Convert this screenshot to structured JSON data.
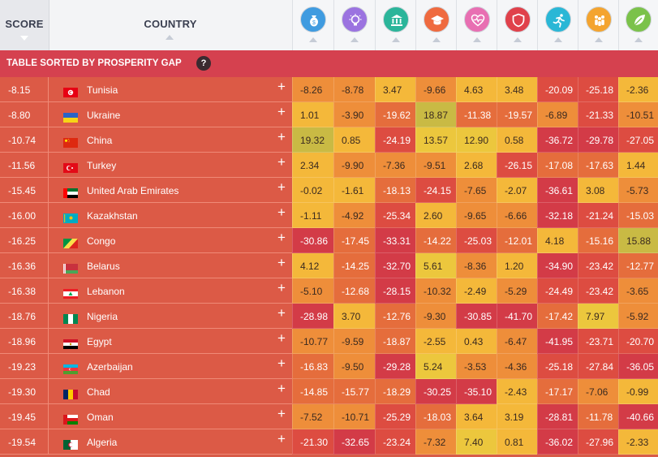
{
  "header": {
    "score_label": "SCORE",
    "country_label": "COUNTRY",
    "pillars": [
      {
        "icon": "money-bag-icon",
        "color": "#3f9be0"
      },
      {
        "icon": "lightbulb-icon",
        "color": "#9b73e0"
      },
      {
        "icon": "government-building-icon",
        "color": "#2bb59a"
      },
      {
        "icon": "graduation-cap-icon",
        "color": "#ef6a3f"
      },
      {
        "icon": "heart-pulse-icon",
        "color": "#e86fb2"
      },
      {
        "icon": "shield-icon",
        "color": "#e0414b"
      },
      {
        "icon": "runner-icon",
        "color": "#2ab7d6"
      },
      {
        "icon": "people-group-icon",
        "color": "#f4a42f"
      },
      {
        "icon": "leaf-icon",
        "color": "#7bc24a"
      }
    ]
  },
  "banner": {
    "text": "TABLE SORTED BY PROSPERITY GAP",
    "help": "?"
  },
  "rows": [
    {
      "score": "-8.15",
      "country": "Tunisia",
      "flag": "tunisia",
      "values": [
        "-8.26",
        "-8.78",
        "3.47",
        "-9.66",
        "4.63",
        "3.48",
        "-20.09",
        "-25.18",
        "-2.36"
      ]
    },
    {
      "score": "-8.80",
      "country": "Ukraine",
      "flag": "ukraine",
      "values": [
        "1.01",
        "-3.90",
        "-19.62",
        "18.87",
        "-11.38",
        "-19.57",
        "-6.89",
        "-21.33",
        "-10.51"
      ]
    },
    {
      "score": "-10.74",
      "country": "China",
      "flag": "china",
      "values": [
        "19.32",
        "0.85",
        "-24.19",
        "13.57",
        "12.90",
        "0.58",
        "-36.72",
        "-29.78",
        "-27.05"
      ]
    },
    {
      "score": "-11.56",
      "country": "Turkey",
      "flag": "turkey",
      "values": [
        "2.34",
        "-9.90",
        "-7.36",
        "-9.51",
        "2.68",
        "-26.15",
        "-17.08",
        "-17.63",
        "1.44"
      ]
    },
    {
      "score": "-15.45",
      "country": "United Arab Emirates",
      "flag": "uae",
      "values": [
        "-0.02",
        "-1.61",
        "-18.13",
        "-24.15",
        "-7.65",
        "-2.07",
        "-36.61",
        "3.08",
        "-5.73"
      ]
    },
    {
      "score": "-16.00",
      "country": "Kazakhstan",
      "flag": "kazakhstan",
      "values": [
        "-1.11",
        "-4.92",
        "-25.34",
        "2.60",
        "-9.65",
        "-6.66",
        "-32.18",
        "-21.24",
        "-15.03"
      ]
    },
    {
      "score": "-16.25",
      "country": "Congo",
      "flag": "congo",
      "values": [
        "-30.86",
        "-17.45",
        "-33.31",
        "-14.22",
        "-25.03",
        "-12.01",
        "4.18",
        "-15.16",
        "15.88"
      ]
    },
    {
      "score": "-16.36",
      "country": "Belarus",
      "flag": "belarus",
      "values": [
        "4.12",
        "-14.25",
        "-32.70",
        "5.61",
        "-8.36",
        "1.20",
        "-34.90",
        "-23.42",
        "-12.77"
      ]
    },
    {
      "score": "-16.38",
      "country": "Lebanon",
      "flag": "lebanon",
      "values": [
        "-5.10",
        "-12.68",
        "-28.15",
        "-10.32",
        "-2.49",
        "-5.29",
        "-24.49",
        "-23.42",
        "-3.65"
      ]
    },
    {
      "score": "-18.76",
      "country": "Nigeria",
      "flag": "nigeria",
      "values": [
        "-28.98",
        "3.70",
        "-12.76",
        "-9.30",
        "-30.85",
        "-41.70",
        "-17.42",
        "7.97",
        "-5.92"
      ]
    },
    {
      "score": "-18.96",
      "country": "Egypt",
      "flag": "egypt",
      "values": [
        "-10.77",
        "-9.59",
        "-18.87",
        "-2.55",
        "0.43",
        "-6.47",
        "-41.95",
        "-23.71",
        "-20.70"
      ]
    },
    {
      "score": "-19.23",
      "country": "Azerbaijan",
      "flag": "azerbaijan",
      "values": [
        "-16.83",
        "-9.50",
        "-29.28",
        "5.24",
        "-3.53",
        "-4.36",
        "-25.18",
        "-27.84",
        "-36.05"
      ]
    },
    {
      "score": "-19.30",
      "country": "Chad",
      "flag": "chad",
      "values": [
        "-14.85",
        "-15.77",
        "-18.29",
        "-30.25",
        "-35.10",
        "-2.43",
        "-17.17",
        "-7.06",
        "-0.99"
      ]
    },
    {
      "score": "-19.45",
      "country": "Oman",
      "flag": "oman",
      "values": [
        "-7.52",
        "-10.71",
        "-25.29",
        "-18.03",
        "3.64",
        "3.19",
        "-28.81",
        "-11.78",
        "-40.66"
      ]
    },
    {
      "score": "-19.54",
      "country": "Algeria",
      "flag": "algeria",
      "values": [
        "-21.30",
        "-32.65",
        "-23.24",
        "-7.32",
        "7.40",
        "0.81",
        "-36.02",
        "-27.96",
        "-2.33"
      ]
    }
  ]
}
